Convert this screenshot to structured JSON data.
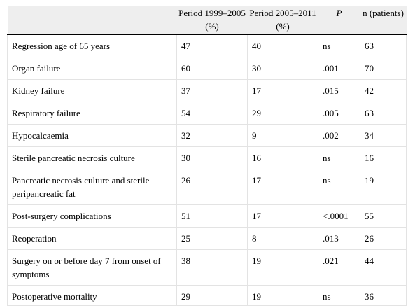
{
  "header": {
    "col1": "",
    "col2": "Period 1999–2005 (%)",
    "col3": "Period 2005–2011 (%)",
    "col4": "P",
    "col5": "n (patients)"
  },
  "rows": [
    {
      "label": "Regression age of 65 years",
      "p1": "47",
      "p2": "40",
      "p": "ns",
      "n": "63"
    },
    {
      "label": "Organ failure",
      "p1": "60",
      "p2": "30",
      "p": ".001",
      "n": "70"
    },
    {
      "label": "Kidney failure",
      "p1": "37",
      "p2": "17",
      "p": ".015",
      "n": "42"
    },
    {
      "label": "Respiratory failure",
      "p1": "54",
      "p2": "29",
      "p": ".005",
      "n": "63"
    },
    {
      "label": "Hypocalcaemia",
      "p1": "32",
      "p2": "9",
      "p": ".002",
      "n": "34"
    },
    {
      "label": "Sterile pancreatic necrosis culture",
      "p1": "30",
      "p2": "16",
      "p": "ns",
      "n": "16"
    },
    {
      "label": "Pancreatic necrosis culture and sterile peripancreatic fat",
      "p1": "26",
      "p2": "17",
      "p": "ns",
      "n": "19"
    },
    {
      "label": "Post-surgery complications",
      "p1": "51",
      "p2": "17",
      "p": "<.0001",
      "n": "55"
    },
    {
      "label": "Reoperation",
      "p1": "25",
      "p2": "8",
      "p": ".013",
      "n": "26"
    },
    {
      "label": "Surgery on or before day 7 from onset of symptoms",
      "p1": "38",
      "p2": "19",
      "p": ".021",
      "n": "44"
    },
    {
      "label": "Postoperative mortality",
      "p1": "29",
      "p2": "19",
      "p": "ns",
      "n": "36"
    }
  ]
}
